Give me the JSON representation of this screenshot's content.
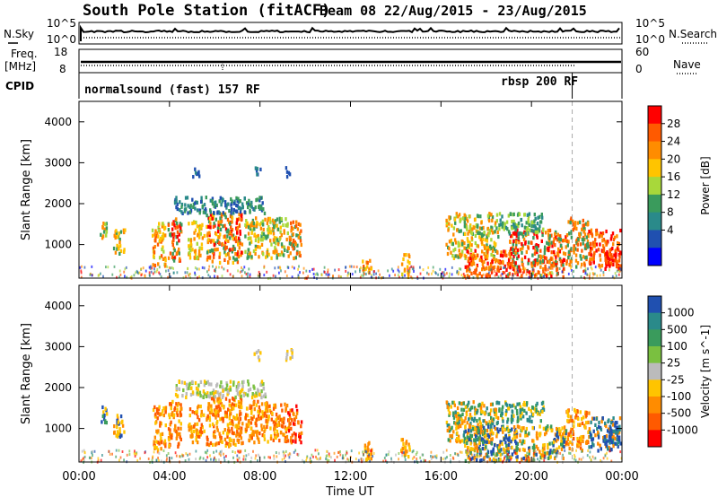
{
  "header": {
    "station": "South Pole Station (fitACF)",
    "beam": "Beam 08",
    "dates": "22/Aug/2015 - 23/Aug/2015"
  },
  "noise_panel": {
    "left_label": "N.Sky",
    "right_label": "N.Search",
    "left_ticks": [
      "10^5",
      "10^0"
    ],
    "right_ticks": [
      "10^5",
      "10^0"
    ]
  },
  "freq_panel": {
    "left_label_1": "Freq.",
    "left_label_2": "[MHz]",
    "right_label": "Nave",
    "left_ticks": [
      "18",
      "8"
    ],
    "right_ticks": [
      "60",
      "0"
    ]
  },
  "cpid_panel": {
    "label": "CPID",
    "mode_1": "normalsound (fast) 157 RF",
    "mode_2": "rbsp 200 RF"
  },
  "chart_data": [
    {
      "type": "heatmap",
      "name": "power",
      "ylabel": "Slant Range [km]",
      "xlabel": "Time UT",
      "x_ticks": [
        "00:00",
        "04:00",
        "08:00",
        "12:00",
        "16:00",
        "20:00",
        "00:00"
      ],
      "x_range_hours": [
        0,
        24
      ],
      "y_ticks": [
        1000,
        2000,
        3000,
        4000
      ],
      "y_range_km": [
        180,
        4500
      ],
      "colorbar_label": "Power [dB]",
      "colorbar_ticks": [
        "28",
        "24",
        "20",
        "16",
        "12",
        "8",
        "4"
      ],
      "colorbar_colors": [
        "#ff0000",
        "#ff5a00",
        "#ff8c00",
        "#ffc400",
        "#a8d83a",
        "#3a9b5c",
        "#2a8a8a",
        "#2050b0",
        "#0000ff"
      ],
      "mode_change_hour": 21.8,
      "patches": [
        {
          "t0": 0.9,
          "t1": 1.2,
          "r0": 1100,
          "r1": 1600,
          "c": [
            4,
            5,
            2
          ]
        },
        {
          "t0": 1.5,
          "t1": 2.0,
          "r0": 800,
          "r1": 1400,
          "c": [
            5,
            3,
            2
          ]
        },
        {
          "t0": 3.2,
          "t1": 3.8,
          "r0": 500,
          "r1": 1600,
          "c": [
            2,
            1,
            4,
            3
          ]
        },
        {
          "t0": 3.9,
          "t1": 4.5,
          "r0": 600,
          "r1": 1700,
          "c": [
            1,
            2,
            5,
            0
          ]
        },
        {
          "t0": 4.8,
          "t1": 5.5,
          "r0": 700,
          "r1": 1600,
          "c": [
            2,
            4,
            3
          ]
        },
        {
          "t0": 5.6,
          "t1": 7.2,
          "r0": 600,
          "r1": 1800,
          "c": [
            1,
            2,
            3,
            5,
            0
          ]
        },
        {
          "t0": 7.3,
          "t1": 9.2,
          "r0": 700,
          "r1": 1700,
          "c": [
            4,
            5,
            3,
            2
          ]
        },
        {
          "t0": 9.2,
          "t1": 9.8,
          "r0": 700,
          "r1": 1600,
          "c": [
            2,
            1,
            5
          ]
        },
        {
          "t0": 4.2,
          "t1": 8.2,
          "r0": 1800,
          "r1": 2200,
          "c": [
            6,
            7,
            5
          ]
        },
        {
          "t0": 5.0,
          "t1": 5.3,
          "r0": 2600,
          "r1": 2900,
          "c": [
            7,
            6
          ]
        },
        {
          "t0": 7.7,
          "t1": 8.0,
          "r0": 2700,
          "r1": 2950,
          "c": [
            7,
            6
          ]
        },
        {
          "t0": 9.1,
          "t1": 9.4,
          "r0": 2700,
          "r1": 3000,
          "c": [
            7,
            6
          ]
        },
        {
          "t0": 14.2,
          "t1": 14.6,
          "r0": 250,
          "r1": 800,
          "c": [
            2,
            3
          ]
        },
        {
          "t0": 12.5,
          "t1": 12.9,
          "r0": 250,
          "r1": 700,
          "c": [
            2,
            3,
            1
          ]
        },
        {
          "t0": 16.2,
          "t1": 18.5,
          "r0": 700,
          "r1": 1800,
          "c": [
            4,
            5,
            2,
            3
          ]
        },
        {
          "t0": 17.0,
          "t1": 19.0,
          "r0": 250,
          "r1": 900,
          "c": [
            0,
            1,
            2
          ]
        },
        {
          "t0": 19.0,
          "t1": 21.5,
          "r0": 250,
          "r1": 1400,
          "c": [
            1,
            2,
            0,
            5
          ]
        },
        {
          "t0": 18.5,
          "t1": 20.5,
          "r0": 1300,
          "r1": 1800,
          "c": [
            5,
            4,
            6
          ]
        },
        {
          "t0": 21.5,
          "t1": 22.5,
          "r0": 500,
          "r1": 1700,
          "c": [
            2,
            5,
            1
          ]
        },
        {
          "t0": 22.5,
          "t1": 23.9,
          "r0": 500,
          "r1": 1400,
          "c": [
            0,
            1,
            2
          ]
        },
        {
          "t0": 23.2,
          "t1": 23.9,
          "r0": 400,
          "r1": 900,
          "c": [
            0,
            1
          ]
        }
      ]
    },
    {
      "type": "heatmap",
      "name": "velocity",
      "ylabel": "Slant Range [km]",
      "xlabel": "Time UT",
      "x_ticks": [
        "00:00",
        "04:00",
        "08:00",
        "12:00",
        "16:00",
        "20:00",
        "00:00"
      ],
      "x_range_hours": [
        0,
        24
      ],
      "y_ticks": [
        1000,
        2000,
        3000,
        4000
      ],
      "y_range_km": [
        180,
        4500
      ],
      "colorbar_label": "Velocity [m s^-1]",
      "colorbar_ticks": [
        "1000",
        "500",
        "100",
        "25",
        "-25",
        "-100",
        "-500",
        "-1000"
      ],
      "colorbar_colors": [
        "#2050b0",
        "#2a8a8a",
        "#3a9b5c",
        "#7ac040",
        "#bbbbbb",
        "#ffc400",
        "#ff8c00",
        "#ff5a00",
        "#ff0000"
      ],
      "mode_change_hour": 21.8,
      "patches": [
        {
          "t0": 0.9,
          "t1": 1.2,
          "r0": 1100,
          "r1": 1600,
          "c": [
            5,
            0,
            2
          ]
        },
        {
          "t0": 1.5,
          "t1": 2.0,
          "r0": 800,
          "r1": 1400,
          "c": [
            6,
            0,
            5
          ]
        },
        {
          "t0": 3.2,
          "t1": 3.8,
          "r0": 500,
          "r1": 1600,
          "c": [
            6,
            7,
            5
          ]
        },
        {
          "t0": 3.9,
          "t1": 4.5,
          "r0": 600,
          "r1": 1700,
          "c": [
            6,
            5,
            7
          ]
        },
        {
          "t0": 4.8,
          "t1": 5.5,
          "r0": 700,
          "r1": 1600,
          "c": [
            6,
            5,
            7
          ]
        },
        {
          "t0": 5.6,
          "t1": 7.2,
          "r0": 600,
          "r1": 1800,
          "c": [
            6,
            7,
            5
          ]
        },
        {
          "t0": 7.3,
          "t1": 9.2,
          "r0": 700,
          "r1": 1700,
          "c": [
            6,
            7,
            5
          ]
        },
        {
          "t0": 9.2,
          "t1": 9.8,
          "r0": 700,
          "r1": 1600,
          "c": [
            7,
            6,
            8
          ]
        },
        {
          "t0": 4.2,
          "t1": 8.2,
          "r0": 1800,
          "r1": 2200,
          "c": [
            4,
            5,
            3
          ]
        },
        {
          "t0": 7.7,
          "t1": 8.0,
          "r0": 2700,
          "r1": 2950,
          "c": [
            4,
            5
          ]
        },
        {
          "t0": 9.1,
          "t1": 9.4,
          "r0": 2700,
          "r1": 3000,
          "c": [
            4,
            5
          ]
        },
        {
          "t0": 12.5,
          "t1": 12.9,
          "r0": 250,
          "r1": 700,
          "c": [
            5,
            6
          ]
        },
        {
          "t0": 14.2,
          "t1": 14.6,
          "r0": 250,
          "r1": 800,
          "c": [
            5,
            6
          ]
        },
        {
          "t0": 16.2,
          "t1": 18.5,
          "r0": 700,
          "r1": 1700,
          "c": [
            2,
            5,
            6,
            1
          ]
        },
        {
          "t0": 17.0,
          "t1": 21.5,
          "r0": 250,
          "r1": 1100,
          "c": [
            6,
            5,
            2,
            0
          ]
        },
        {
          "t0": 18.5,
          "t1": 20.5,
          "r0": 1200,
          "r1": 1700,
          "c": [
            2,
            1,
            5
          ]
        },
        {
          "t0": 21.5,
          "t1": 22.5,
          "r0": 500,
          "r1": 1500,
          "c": [
            6,
            7,
            5
          ]
        },
        {
          "t0": 22.5,
          "t1": 23.9,
          "r0": 500,
          "r1": 1300,
          "c": [
            0,
            1,
            6
          ]
        },
        {
          "t0": 23.2,
          "t1": 23.9,
          "r0": 600,
          "r1": 1200,
          "c": [
            0,
            1
          ]
        }
      ]
    }
  ]
}
